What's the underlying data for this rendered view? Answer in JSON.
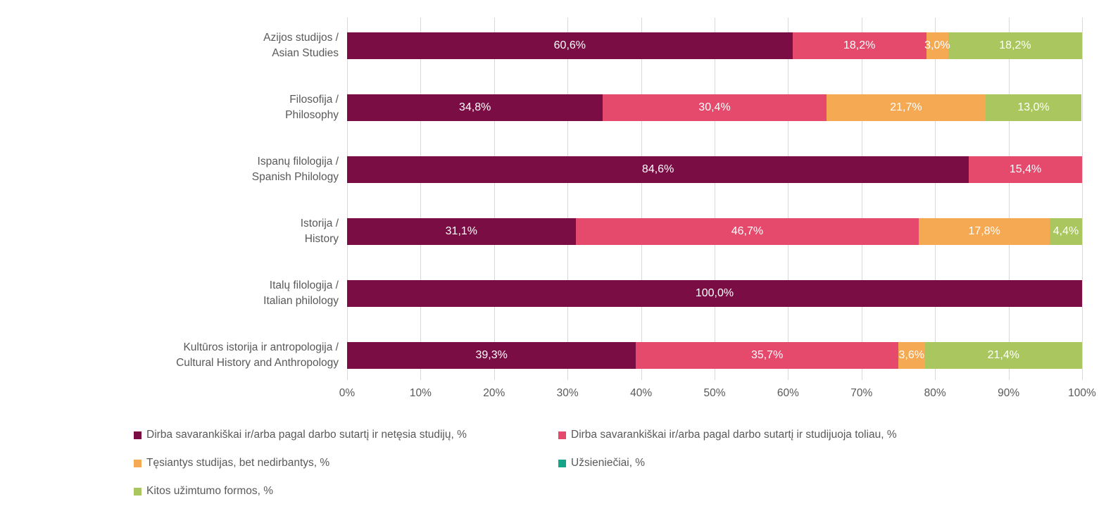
{
  "chart_data": {
    "type": "bar",
    "orientation": "horizontal",
    "stacked": true,
    "title": "",
    "xlabel": "",
    "ylabel": "",
    "xlim": [
      0,
      100
    ],
    "x_ticks": [
      "0%",
      "10%",
      "20%",
      "30%",
      "40%",
      "50%",
      "60%",
      "70%",
      "80%",
      "90%",
      "100%"
    ],
    "grid": "vertical-only",
    "legend_position": "bottom-two-columns",
    "data_label_format": "comma-decimal-percent",
    "categories": [
      [
        "Azijos studijos /",
        "Asian Studies"
      ],
      [
        "Filosofija /",
        "Philosophy"
      ],
      [
        "Ispanų filologija /",
        "Spanish Philology"
      ],
      [
        "Istorija /",
        "History"
      ],
      [
        "Italų filologija /",
        "Italian philology"
      ],
      [
        "Kultūros istorija ir antropologija /",
        "Cultural History and Anthropology"
      ]
    ],
    "series": [
      {
        "name": "Dirba savarankiškai ir/arba pagal darbo sutartį ir netęsia studijų, %",
        "color": "#7B0D45",
        "values": [
          60.6,
          34.8,
          84.6,
          31.1,
          100,
          39.3
        ]
      },
      {
        "name": "Dirba savarankiškai ir/arba pagal darbo sutartį ir studijuoja toliau, %",
        "color": "#E5496C",
        "values": [
          18.2,
          30.4,
          15.4,
          46.7,
          0,
          35.7
        ]
      },
      {
        "name": "Tęsiantys studijas, bet nedirbantys, %",
        "color": "#F5A953",
        "values": [
          3,
          21.7,
          0,
          17.8,
          0,
          3.6
        ]
      },
      {
        "name": "Užsieniečiai, %",
        "color": "#17A58A",
        "values": [
          0,
          0,
          0,
          0,
          0,
          0
        ]
      },
      {
        "name": "Kitos užimtumo formos, %",
        "color": "#A9C75E",
        "values": [
          18.2,
          13,
          0,
          4.4,
          0,
          21.4
        ]
      }
    ],
    "colors": {
      "grid": "#D9D9D9",
      "axis_text": "#595959",
      "data_label_text": "#FFFFFF",
      "background": "#FFFFFF"
    }
  }
}
